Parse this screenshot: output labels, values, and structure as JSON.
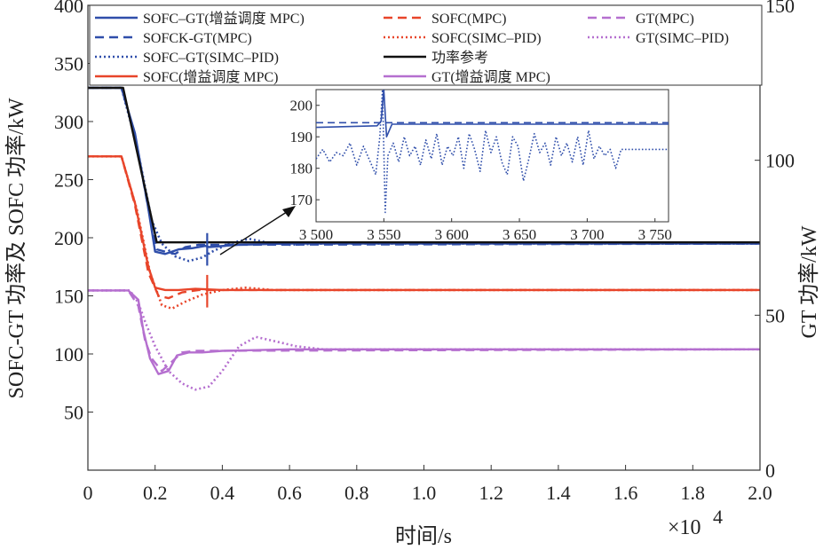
{
  "chart_data": {
    "type": "line",
    "xlabel": "时间/s",
    "x_multiplier": "×10",
    "x_multiplier_exp": "4",
    "ylabel_left": "SOFC-GT 功率及 SOFC 功率/kW",
    "ylabel_right": "GT 功率/kW",
    "xlim": [
      0,
      20000
    ],
    "ylim_left": [
      0,
      400
    ],
    "ylim_right": [
      0,
      150
    ],
    "x_ticks": [
      "0",
      "0.2",
      "0.4",
      "0.6",
      "0.8",
      "1.0",
      "1.2",
      "1.4",
      "1.6",
      "1.8",
      "2.0"
    ],
    "y_left_ticks": [
      "50",
      "100",
      "150",
      "200",
      "250",
      "300",
      "350",
      "400"
    ],
    "y_right_ticks": [
      "0",
      "50",
      "100",
      "150"
    ],
    "grid": false,
    "legend_position": "top",
    "colors": {
      "blue": "#2f4eaa",
      "red": "#e8452a",
      "violet": "#b56fcf",
      "black": "#111111"
    },
    "series": [
      {
        "name": "SOFC–GT(增益调度 MPC)",
        "color": "#2f4eaa",
        "dash": "solid",
        "axis": "left",
        "points": [
          [
            0,
            329
          ],
          [
            1000,
            329
          ],
          [
            1400,
            290
          ],
          [
            1800,
            225
          ],
          [
            2000,
            188
          ],
          [
            2300,
            186
          ],
          [
            2700,
            190
          ],
          [
            3100,
            191
          ],
          [
            3500,
            193
          ],
          [
            3600,
            192
          ],
          [
            4500,
            194
          ],
          [
            6000,
            195
          ],
          [
            20000,
            195
          ]
        ]
      },
      {
        "name": "SOFCK-GT(MPC)",
        "color": "#2f4eaa",
        "dash": "dashed",
        "axis": "left",
        "points": [
          [
            0,
            329
          ],
          [
            1000,
            329
          ],
          [
            1400,
            288
          ],
          [
            1800,
            225
          ],
          [
            2050,
            190
          ],
          [
            2300,
            188
          ],
          [
            2600,
            186
          ],
          [
            2900,
            192
          ],
          [
            3300,
            194
          ],
          [
            3600,
            194
          ],
          [
            4500,
            194
          ],
          [
            20000,
            195
          ]
        ]
      },
      {
        "name": "SOFC–GT(SIMC–PID)",
        "color": "#2f4eaa",
        "dash": "dotted",
        "axis": "left",
        "points": [
          [
            0,
            329
          ],
          [
            1000,
            329
          ],
          [
            1450,
            280
          ],
          [
            1900,
            215
          ],
          [
            2200,
            195
          ],
          [
            2600,
            184
          ],
          [
            3000,
            180
          ],
          [
            3400,
            183
          ],
          [
            3700,
            188
          ],
          [
            4200,
            195
          ],
          [
            4800,
            199
          ],
          [
            5300,
            196
          ],
          [
            6000,
            194
          ],
          [
            7000,
            195
          ],
          [
            20000,
            195
          ]
        ]
      },
      {
        "name": "SOFC(增益调度 MPC)",
        "color": "#e8452a",
        "dash": "solid",
        "axis": "left",
        "points": [
          [
            0,
            270
          ],
          [
            1000,
            270
          ],
          [
            1400,
            230
          ],
          [
            1800,
            175
          ],
          [
            2000,
            157
          ],
          [
            2300,
            155
          ],
          [
            2700,
            155
          ],
          [
            3200,
            156
          ],
          [
            4000,
            155
          ],
          [
            20000,
            155
          ]
        ]
      },
      {
        "name": "SOFC(MPC)",
        "color": "#e8452a",
        "dash": "dashed",
        "axis": "left",
        "points": [
          [
            0,
            270
          ],
          [
            1000,
            270
          ],
          [
            1400,
            228
          ],
          [
            1800,
            170
          ],
          [
            2100,
            150
          ],
          [
            2400,
            148
          ],
          [
            2800,
            153
          ],
          [
            3300,
            155
          ],
          [
            20000,
            155
          ]
        ]
      },
      {
        "name": "SOFC(SIMC–PID)",
        "color": "#e8452a",
        "dash": "dotted",
        "axis": "left",
        "points": [
          [
            0,
            270
          ],
          [
            1000,
            270
          ],
          [
            1450,
            225
          ],
          [
            1850,
            170
          ],
          [
            2200,
            142
          ],
          [
            2500,
            139
          ],
          [
            2900,
            145
          ],
          [
            3400,
            151
          ],
          [
            4000,
            155
          ],
          [
            4700,
            157
          ],
          [
            5500,
            155
          ],
          [
            20000,
            155
          ]
        ]
      },
      {
        "name": "功率参考",
        "color": "#111111",
        "dash": "solid",
        "axis": "left",
        "points": [
          [
            0,
            329
          ],
          [
            1050,
            329
          ],
          [
            2050,
            196
          ],
          [
            20000,
            196
          ]
        ]
      },
      {
        "name": "GT(增益调度 MPC)",
        "color": "#b56fcf",
        "dash": "solid",
        "axis": "right",
        "points": [
          [
            0,
            58
          ],
          [
            1200,
            58
          ],
          [
            1500,
            55
          ],
          [
            1650,
            45
          ],
          [
            1850,
            36
          ],
          [
            2100,
            31
          ],
          [
            2400,
            32
          ],
          [
            2650,
            37
          ],
          [
            3000,
            38
          ],
          [
            3400,
            38
          ],
          [
            4000,
            38.5
          ],
          [
            6000,
            39
          ],
          [
            20000,
            39
          ]
        ]
      },
      {
        "name": "GT(MPC)",
        "color": "#b56fcf",
        "dash": "dashed",
        "axis": "right",
        "points": [
          [
            0,
            58
          ],
          [
            1200,
            58
          ],
          [
            1500,
            53
          ],
          [
            1700,
            42
          ],
          [
            1900,
            36
          ],
          [
            2200,
            32
          ],
          [
            2500,
            35
          ],
          [
            2800,
            38
          ],
          [
            3200,
            38.5
          ],
          [
            20000,
            39
          ]
        ]
      },
      {
        "name": "GT(SIMC–PID)",
        "color": "#b56fcf",
        "dash": "dotted",
        "axis": "right",
        "points": [
          [
            0,
            58
          ],
          [
            1250,
            58
          ],
          [
            1500,
            54
          ],
          [
            1700,
            48
          ],
          [
            2000,
            40
          ],
          [
            2400,
            32
          ],
          [
            2800,
            28
          ],
          [
            3200,
            26
          ],
          [
            3600,
            27
          ],
          [
            4000,
            32
          ],
          [
            4500,
            40
          ],
          [
            5000,
            43
          ],
          [
            5600,
            41.5
          ],
          [
            6200,
            40
          ],
          [
            7000,
            39
          ],
          [
            8000,
            39
          ],
          [
            20000,
            39
          ]
        ]
      }
    ],
    "inset": {
      "xlim": [
        3500,
        3760
      ],
      "ylim": [
        163,
        205
      ],
      "x_ticks": [
        "3 500",
        "3 550",
        "3 600",
        "3 650",
        "3 700",
        "3 750"
      ],
      "y_ticks": [
        "170",
        "180",
        "190",
        "200"
      ],
      "series": [
        {
          "color": "#2f4eaa",
          "dash": "solid",
          "points": [
            [
              3500,
              193
            ],
            [
              3545,
              193.5
            ],
            [
              3548,
              195
            ],
            [
              3550,
              205
            ],
            [
              3552,
              190
            ],
            [
              3556,
              194
            ],
            [
              3600,
              194
            ],
            [
              3760,
              194
            ]
          ]
        },
        {
          "color": "#2f4eaa",
          "dash": "dashed",
          "points": [
            [
              3500,
              194.5
            ],
            [
              3760,
              194.5
            ]
          ]
        },
        {
          "color": "#2f4eaa",
          "dash": "dotted",
          "points": [
            [
              3500,
              183
            ],
            [
              3505,
              186
            ],
            [
              3510,
              182
            ],
            [
              3515,
              185
            ],
            [
              3520,
              184
            ],
            [
              3525,
              188
            ],
            [
              3530,
              181
            ],
            [
              3535,
              187
            ],
            [
              3540,
              182
            ],
            [
              3544,
              178
            ],
            [
              3547,
              190
            ],
            [
              3549,
              205
            ],
            [
              3551,
              166
            ],
            [
              3553,
              184
            ],
            [
              3557,
              188
            ],
            [
              3561,
              182
            ],
            [
              3565,
              190
            ],
            [
              3569,
              184
            ],
            [
              3573,
              187
            ],
            [
              3577,
              181
            ],
            [
              3581,
              189
            ],
            [
              3585,
              183
            ],
            [
              3589,
              191
            ],
            [
              3593,
              181
            ],
            [
              3597,
              187
            ],
            [
              3601,
              184
            ],
            [
              3605,
              190
            ],
            [
              3609,
              180
            ],
            [
              3613,
              191
            ],
            [
              3617,
              186
            ],
            [
              3621,
              179
            ],
            [
              3625,
              192
            ],
            [
              3629,
              185
            ],
            [
              3633,
              190
            ],
            [
              3637,
              182
            ],
            [
              3641,
              178
            ],
            [
              3645,
              190
            ],
            [
              3649,
              187
            ],
            [
              3653,
              176
            ],
            [
              3657,
              183
            ],
            [
              3661,
              191
            ],
            [
              3665,
              185
            ],
            [
              3669,
              188
            ],
            [
              3673,
              181
            ],
            [
              3677,
              190
            ],
            [
              3681,
              184
            ],
            [
              3685,
              188
            ],
            [
              3689,
              182
            ],
            [
              3693,
              190
            ],
            [
              3697,
              181
            ],
            [
              3701,
              192
            ],
            [
              3705,
              183
            ],
            [
              3709,
              187
            ],
            [
              3713,
              184
            ],
            [
              3717,
              186
            ],
            [
              3721,
              180
            ],
            [
              3725,
              186
            ],
            [
              3740,
              186
            ],
            [
              3760,
              186
            ]
          ]
        }
      ]
    }
  }
}
